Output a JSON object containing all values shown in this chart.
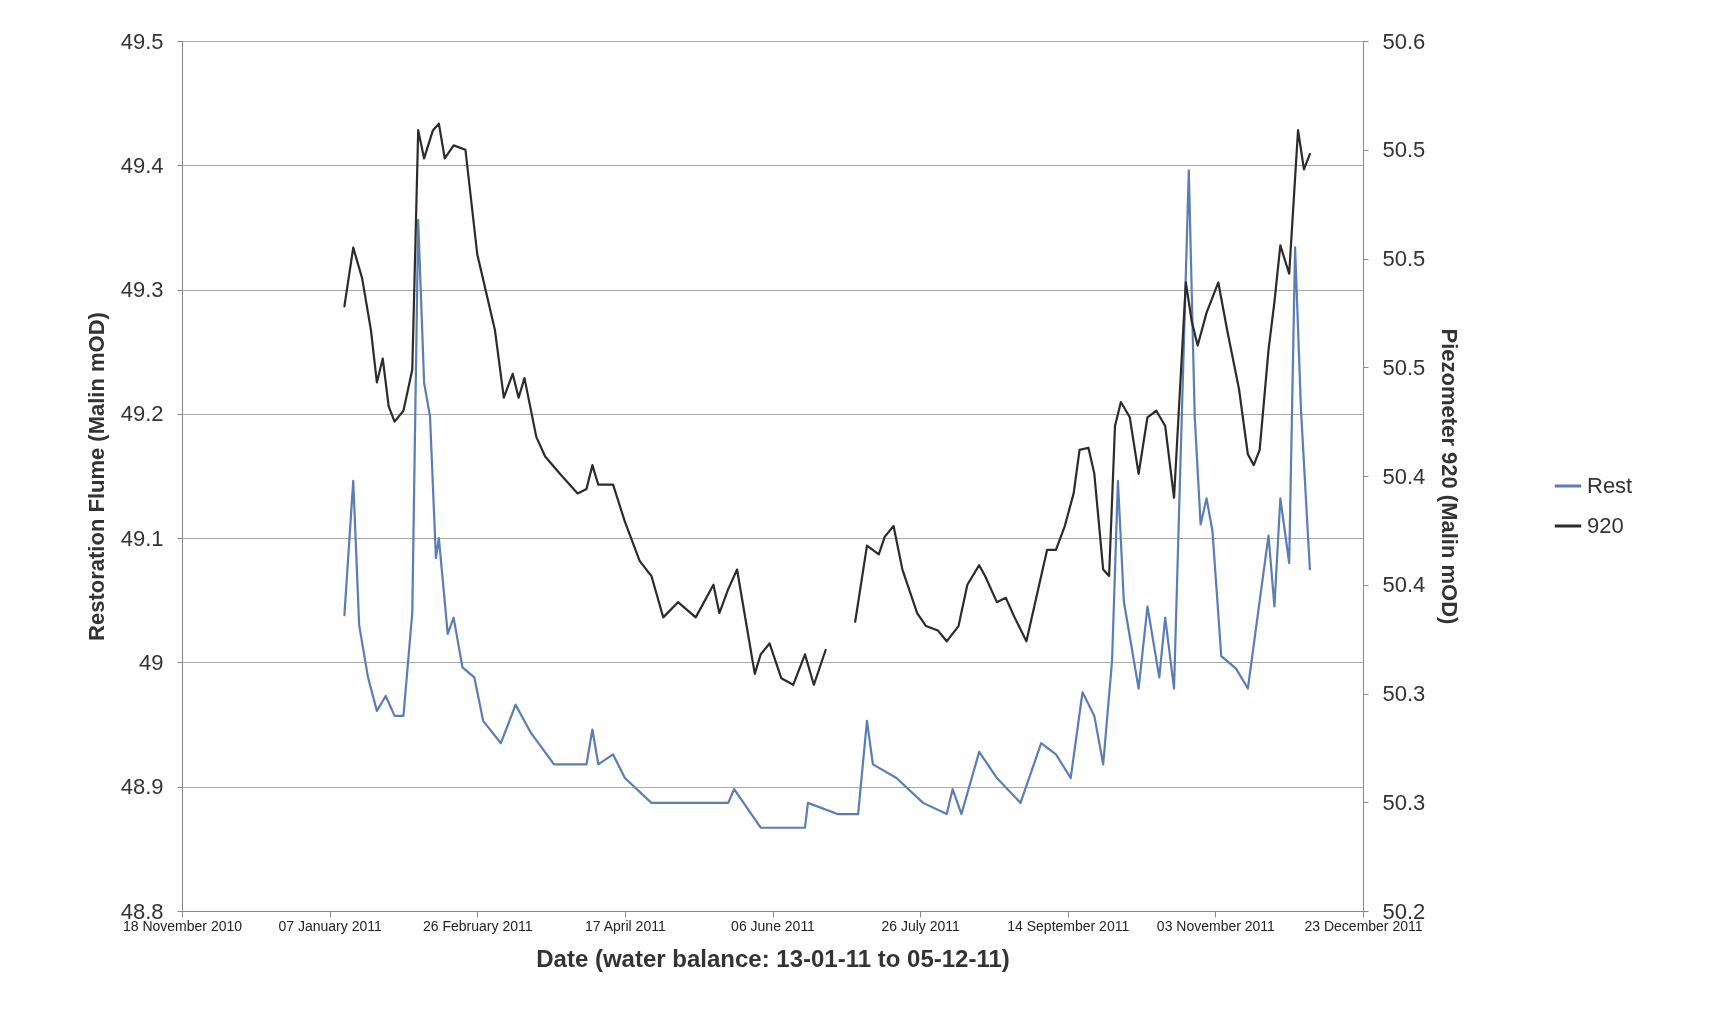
{
  "chart_data": {
    "type": "line",
    "xlabel": "Date (water balance: 13-01-11 to 05-12-11)",
    "ylabel": "Restoration Flume (Malin mOD)",
    "y2label": "Piezometer 920 (Malin mOD)",
    "xlim": [
      "2010-11-18",
      "2011-12-23"
    ],
    "xticks": [
      {
        "value": "2010-11-18",
        "label": "18 November 2010"
      },
      {
        "value": "2011-01-07",
        "label": "07 January 2011"
      },
      {
        "value": "2011-02-26",
        "label": "26 February 2011"
      },
      {
        "value": "2011-04-17",
        "label": "17 April 2011"
      },
      {
        "value": "2011-06-06",
        "label": "06 June 2011"
      },
      {
        "value": "2011-07-26",
        "label": "26 July 2011"
      },
      {
        "value": "2011-09-14",
        "label": "14 September 2011"
      },
      {
        "value": "2011-11-03",
        "label": "03 November 2011"
      },
      {
        "value": "2011-12-23",
        "label": "23 December 2011"
      }
    ],
    "ylim": [
      48.8,
      49.5
    ],
    "yticks": [
      48.8,
      48.9,
      49,
      49.1,
      49.2,
      49.3,
      49.4,
      49.5
    ],
    "y2lim": [
      50.2,
      50.6
    ],
    "y2ticks": [
      50.2,
      {
        "value": 50.25,
        "label": "50.3"
      },
      50.3,
      {
        "value": 50.35,
        "label": "50.4"
      },
      50.4,
      {
        "value": 50.45,
        "label": "50.5"
      },
      50.5,
      {
        "value": 50.55,
        "label": "50.5"
      },
      50.6
    ],
    "grid": "y",
    "legend": "right",
    "series": [
      {
        "name": "Rest",
        "color": "#5b7db4",
        "x": [
          "2011-01-12",
          "2011-01-15",
          "2011-01-17",
          "2011-01-20",
          "2011-01-23",
          "2011-01-26",
          "2011-01-29",
          "2011-02-01",
          "2011-02-04",
          "2011-02-06",
          "2011-02-08",
          "2011-02-10",
          "2011-02-12",
          "2011-02-13",
          "2011-02-16",
          "2011-02-18",
          "2011-02-21",
          "2011-02-25",
          "2011-02-28",
          "2011-03-06",
          "2011-03-11",
          "2011-03-16",
          "2011-03-24",
          "2011-04-04",
          "2011-04-06",
          "2011-04-08",
          "2011-04-13",
          "2011-04-17",
          "2011-04-26",
          "2011-05-11",
          "2011-05-22",
          "2011-05-24",
          "2011-06-02",
          "2011-06-17",
          "2011-06-18",
          "2011-06-28",
          "2011-07-05",
          "2011-07-08",
          "2011-07-10",
          "2011-07-18",
          "2011-07-27",
          "2011-08-04",
          "2011-08-06",
          "2011-08-09",
          "2011-08-15",
          "2011-08-21",
          "2011-08-29",
          "2011-09-05",
          "2011-09-10",
          "2011-09-15",
          "2011-09-19",
          "2011-09-23",
          "2011-09-26",
          "2011-09-29",
          "2011-10-01",
          "2011-10-03",
          "2011-10-08",
          "2011-10-11",
          "2011-10-15",
          "2011-10-17",
          "2011-10-20",
          "2011-10-25",
          "2011-10-27",
          "2011-10-29",
          "2011-10-31",
          "2011-11-02",
          "2011-11-05",
          "2011-11-10",
          "2011-11-14",
          "2011-11-19",
          "2011-11-21",
          "2011-11-23",
          "2011-11-25",
          "2011-11-28",
          "2011-11-30",
          "2011-12-02",
          "2011-12-05"
        ],
        "values": [
          49.038,
          49.146,
          49.03,
          48.988,
          48.961,
          48.973,
          48.957,
          48.957,
          49.04,
          49.356,
          49.225,
          49.198,
          49.084,
          49.1,
          49.023,
          49.036,
          48.996,
          48.988,
          48.953,
          48.935,
          48.966,
          48.944,
          48.918,
          48.918,
          48.946,
          48.918,
          48.926,
          48.907,
          48.887,
          48.887,
          48.887,
          48.898,
          48.867,
          48.867,
          48.887,
          48.878,
          48.878,
          48.953,
          48.918,
          48.907,
          48.887,
          48.878,
          48.898,
          48.878,
          48.928,
          48.907,
          48.887,
          48.935,
          48.926,
          48.907,
          48.976,
          48.957,
          48.918,
          49.001,
          49.146,
          49.049,
          48.979,
          49.045,
          48.988,
          49.036,
          48.979,
          49.396,
          49.198,
          49.111,
          49.132,
          49.106,
          49.005,
          48.995,
          48.979,
          49.067,
          49.102,
          49.045,
          49.132,
          49.08,
          49.334,
          49.203,
          49.075
        ]
      },
      {
        "name": "920",
        "color": "#2b2b2b",
        "axis": "y2",
        "x": [
          "2011-01-12",
          "2011-01-15",
          "2011-01-18",
          "2011-01-21",
          "2011-01-23",
          "2011-01-25",
          "2011-01-27",
          "2011-01-29",
          "2011-02-01",
          "2011-02-04",
          "2011-02-06",
          "2011-02-08",
          "2011-02-11",
          "2011-02-13",
          "2011-02-15",
          "2011-02-18",
          "2011-02-22",
          "2011-02-26",
          "2011-03-04",
          "2011-03-07",
          "2011-03-10",
          "2011-03-12",
          "2011-03-14",
          "2011-03-18",
          "2011-03-21",
          "2011-03-26",
          "2011-04-01",
          "2011-04-04",
          "2011-04-06",
          "2011-04-08",
          "2011-04-13",
          "2011-04-17",
          "2011-04-22",
          "2011-04-26",
          "2011-04-30",
          "2011-05-05",
          "2011-05-11",
          "2011-05-17",
          "2011-05-19",
          "2011-05-22",
          "2011-05-25",
          "2011-05-28",
          "2011-05-31",
          "2011-06-02",
          "2011-06-05",
          "2011-06-09",
          "2011-06-13",
          "2011-06-17",
          "2011-06-20",
          "2011-06-24",
          "2011-07-02",
          "2011-07-04",
          "2011-07-08",
          "2011-07-12",
          "2011-07-14",
          "2011-07-17",
          "2011-07-20",
          "2011-07-25",
          "2011-07-28",
          "2011-08-01",
          "2011-08-04",
          "2011-08-08",
          "2011-08-11",
          "2011-08-15",
          "2011-08-17",
          "2011-08-21",
          "2011-08-24",
          "2011-08-27",
          "2011-08-31",
          "2011-09-04",
          "2011-09-07",
          "2011-09-10",
          "2011-09-13",
          "2011-09-16",
          "2011-09-18",
          "2011-09-21",
          "2011-09-23",
          "2011-09-26",
          "2011-09-28",
          "2011-09-30",
          "2011-10-02",
          "2011-10-05",
          "2011-10-08",
          "2011-10-11",
          "2011-10-14",
          "2011-10-17",
          "2011-10-20",
          "2011-10-24",
          "2011-10-26",
          "2011-10-28",
          "2011-10-31",
          "2011-11-04",
          "2011-11-07",
          "2011-11-11",
          "2011-11-14",
          "2011-11-16",
          "2011-11-18",
          "2011-11-21",
          "2011-11-23",
          "2011-11-25",
          "2011-11-28",
          "2011-12-01",
          "2011-12-03",
          "2011-12-05"
        ],
        "values": [
          50.478,
          50.505,
          50.491,
          50.467,
          50.443,
          50.454,
          50.432,
          50.425,
          50.43,
          50.449,
          50.559,
          50.546,
          50.559,
          50.562,
          50.546,
          50.552,
          50.55,
          50.502,
          50.467,
          50.436,
          50.447,
          50.436,
          50.445,
          50.418,
          50.409,
          50.401,
          50.392,
          50.394,
          50.405,
          50.396,
          50.396,
          50.379,
          50.361,
          50.354,
          50.335,
          50.342,
          50.335,
          50.35,
          50.337,
          50.348,
          50.357,
          50.333,
          50.309,
          50.318,
          50.323,
          50.307,
          50.304,
          50.318,
          50.304,
          50.32,
          null,
          50.333,
          50.368,
          50.364,
          50.372,
          50.377,
          50.357,
          50.337,
          50.331,
          50.329,
          50.324,
          50.331,
          50.35,
          50.359,
          50.354,
          50.342,
          50.344,
          50.335,
          50.324,
          50.348,
          50.366,
          50.366,
          50.377,
          50.392,
          50.412,
          50.413,
          50.401,
          50.357,
          50.354,
          50.423,
          50.434,
          50.427,
          50.401,
          50.427,
          50.43,
          50.423,
          50.39,
          50.489,
          50.471,
          50.46,
          50.475,
          50.489,
          50.467,
          50.44,
          50.41,
          50.405,
          50.412,
          50.458,
          50.48,
          50.506,
          50.493,
          50.559,
          50.541,
          50.548
        ]
      }
    ]
  }
}
